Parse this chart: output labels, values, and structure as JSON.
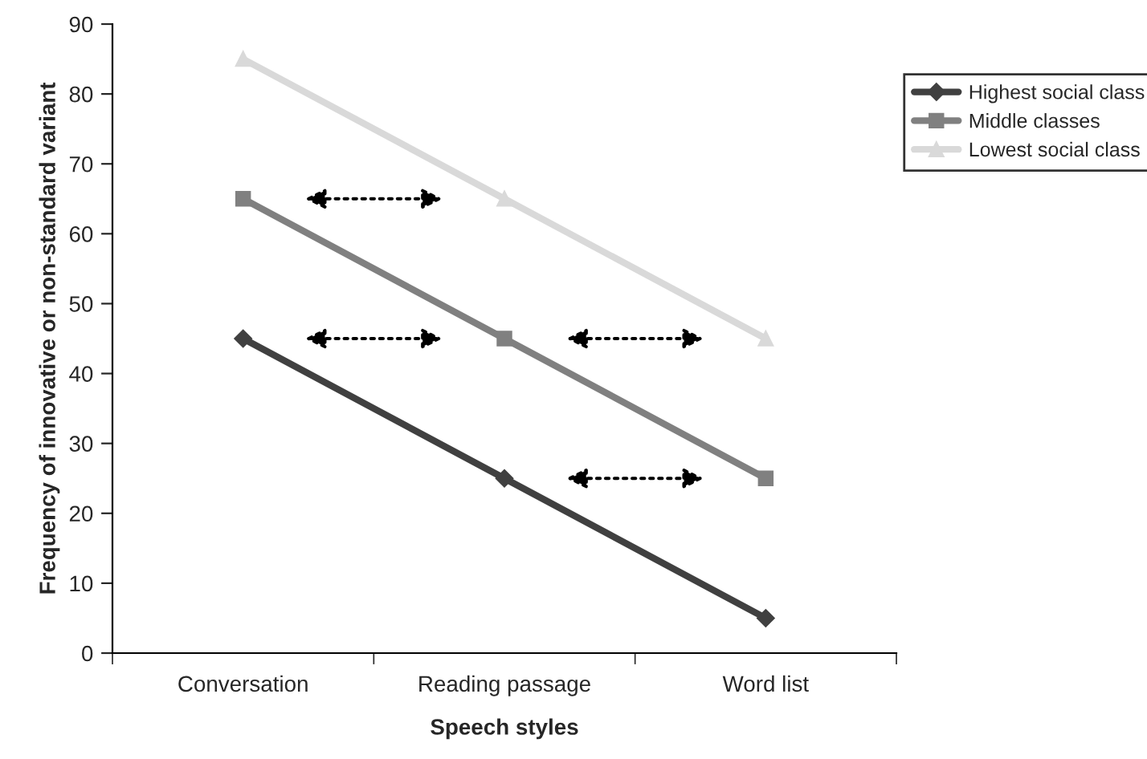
{
  "chart_data": {
    "type": "line",
    "xlabel": "Speech styles",
    "ylabel": "Frequency of innovative or non-standard variant",
    "categories": [
      "Conversation",
      "Reading passage",
      "Word list"
    ],
    "series": [
      {
        "name": "Highest social class",
        "color": "#404040",
        "marker": "diamond",
        "values": [
          45,
          25,
          5
        ]
      },
      {
        "name": "Middle classes",
        "color": "#808080",
        "marker": "square",
        "values": [
          65,
          45,
          25
        ]
      },
      {
        "name": "Lowest social class",
        "color": "#d9d9d9",
        "marker": "triangle",
        "values": [
          85,
          65,
          45
        ]
      }
    ],
    "ylim": [
      0,
      90
    ],
    "yticks": [
      0,
      10,
      20,
      30,
      40,
      50,
      60,
      70,
      80,
      90
    ],
    "grid": false,
    "legend": "top right",
    "line_style": "solid"
  }
}
